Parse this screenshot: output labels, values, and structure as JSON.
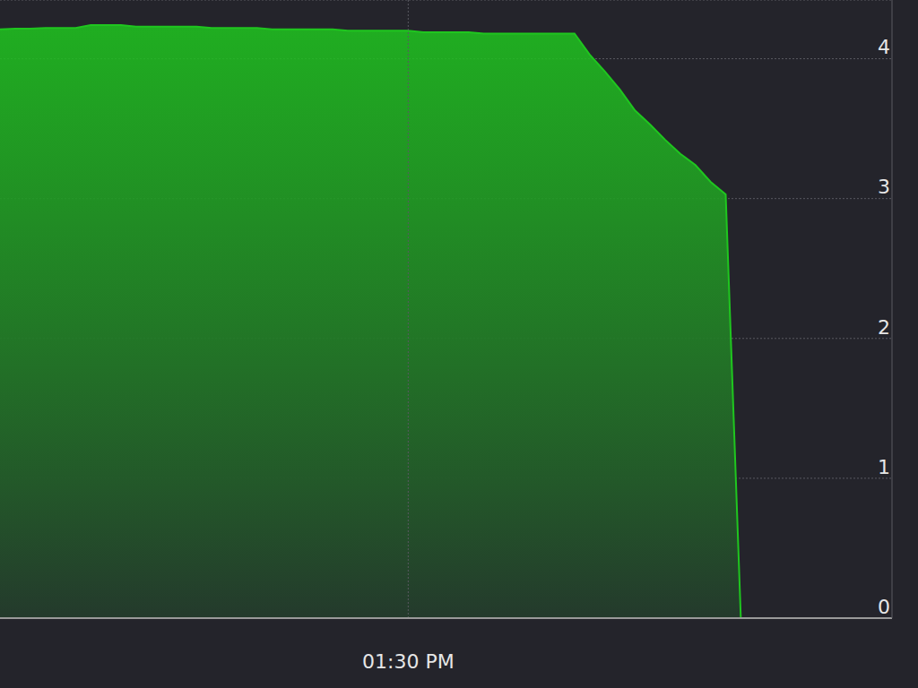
{
  "chart_data": {
    "type": "area",
    "categories": [
      null,
      null,
      null,
      null,
      null,
      null,
      null,
      null,
      null,
      null,
      null,
      null,
      null,
      null,
      null,
      null,
      null,
      null,
      null,
      null,
      null,
      null,
      null,
      null,
      null,
      null,
      null,
      "01:30 PM",
      null,
      null,
      null,
      null,
      null,
      null,
      null,
      null,
      null,
      null,
      null,
      null,
      null,
      null,
      null,
      null,
      null,
      null,
      null,
      null,
      null,
      null,
      null,
      null,
      null,
      null,
      null,
      null,
      null,
      null,
      null,
      null
    ],
    "values": [
      4.21,
      4.215,
      4.215,
      4.22,
      4.22,
      4.22,
      4.24,
      4.24,
      4.24,
      4.23,
      4.23,
      4.23,
      4.23,
      4.23,
      4.22,
      4.22,
      4.22,
      4.22,
      4.21,
      4.21,
      4.21,
      4.21,
      4.21,
      4.2,
      4.2,
      4.2,
      4.2,
      4.2,
      4.19,
      4.19,
      4.19,
      4.19,
      4.18,
      4.18,
      4.18,
      4.18,
      4.18,
      4.18,
      4.18,
      4.03,
      3.91,
      3.78,
      3.63,
      3.53,
      3.42,
      3.32,
      3.24,
      3.12,
      3.03,
      0,
      null,
      null,
      null,
      null,
      null,
      null,
      null,
      null,
      null,
      null
    ],
    "color": "#1fc61f",
    "ylim": [
      0,
      4.42
    ],
    "yticks": [
      0,
      1,
      2,
      3,
      4
    ],
    "grid": true
  }
}
